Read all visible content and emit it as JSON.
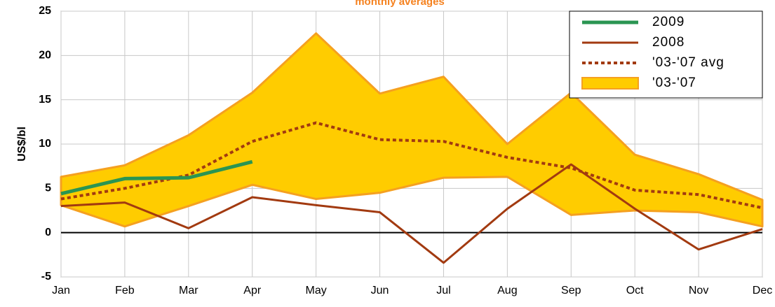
{
  "chart_data": {
    "type": "line",
    "title": "monthly averages",
    "y_label": "US$/bl",
    "categories": [
      "Jan",
      "Feb",
      "Mar",
      "Apr",
      "May",
      "Jun",
      "Jul",
      "Aug",
      "Sep",
      "Oct",
      "Nov",
      "Dec"
    ],
    "ylim": [
      -5,
      25
    ],
    "yticks": [
      -5,
      0,
      5,
      10,
      15,
      20,
      25
    ],
    "grid": true,
    "legend": "top-right",
    "series": [
      {
        "name": "2009",
        "color": "#2a9552",
        "width": 5,
        "values": [
          4.4,
          6.1,
          6.2,
          8.0,
          null,
          null,
          null,
          null,
          null,
          null,
          null,
          null
        ]
      },
      {
        "name": "2008",
        "color": "#a23a10",
        "width": 3,
        "values": [
          3.0,
          3.4,
          0.5,
          4.0,
          3.1,
          2.3,
          -3.4,
          2.7,
          7.7,
          2.7,
          -1.9,
          0.4
        ]
      },
      {
        "name": "'03-'07 avg",
        "color": "#a23a10",
        "width": 4,
        "dashed": true,
        "values": [
          3.8,
          5.0,
          6.5,
          10.3,
          12.4,
          10.5,
          10.3,
          8.5,
          7.3,
          4.8,
          4.3,
          2.8
        ]
      },
      {
        "name": "'03-'07",
        "type": "area",
        "color": "#ffcc00",
        "edge": "#f5a020",
        "values": [
          6.3,
          7.6,
          11.0,
          15.8,
          22.5,
          15.7,
          17.6,
          10.0,
          15.8,
          8.8,
          6.6,
          3.7
        ],
        "low": [
          3.1,
          0.7,
          3.0,
          5.4,
          3.8,
          4.5,
          6.2,
          6.3,
          2.0,
          2.5,
          2.3,
          0.7
        ]
      }
    ]
  }
}
